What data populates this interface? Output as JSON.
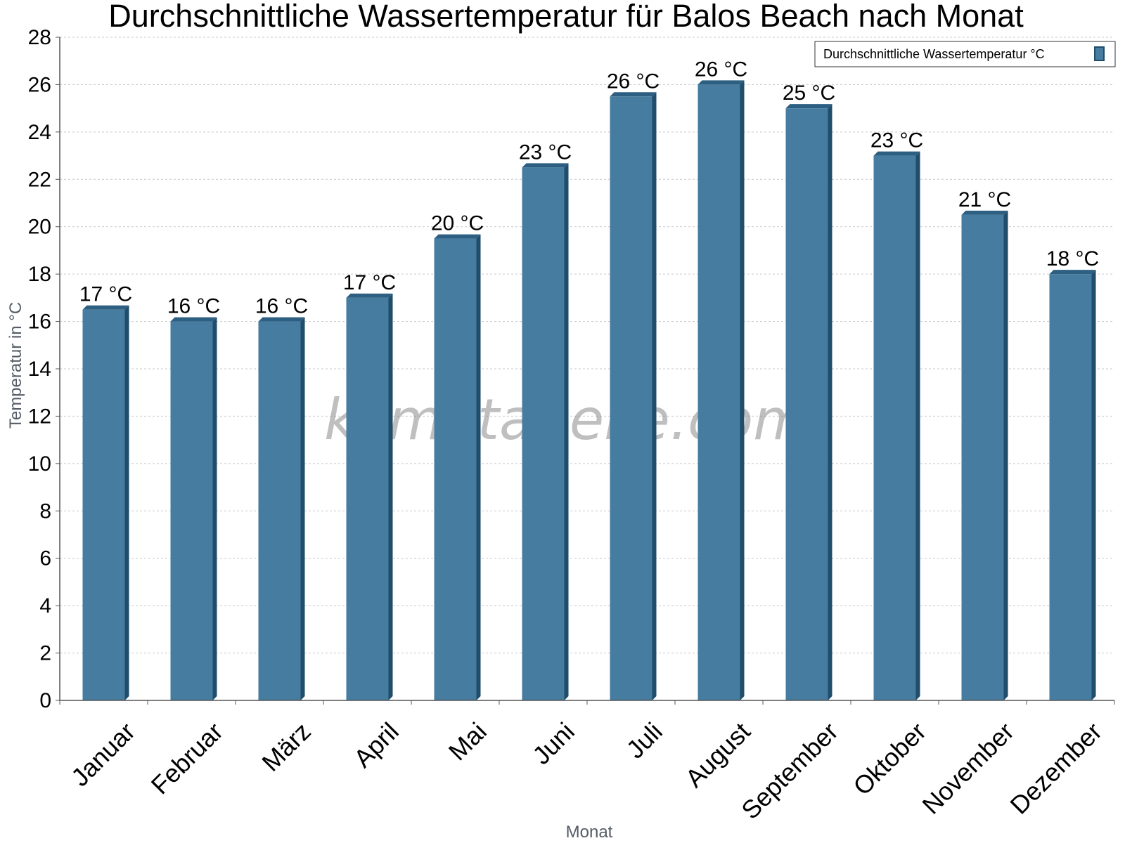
{
  "chart_data": {
    "type": "bar",
    "title": "Durchschnittliche Wassertemperatur für Balos Beach nach Monat",
    "xlabel": "Monat",
    "ylabel": "Temperatur in °C",
    "categories": [
      "Januar",
      "Februar",
      "März",
      "April",
      "Mai",
      "Juni",
      "Juli",
      "August",
      "September",
      "Oktober",
      "November",
      "Dezember"
    ],
    "series": [
      {
        "name": "Durchschnittliche Wassertemperatur °C",
        "values": [
          16.5,
          16,
          16,
          17,
          19.5,
          22.5,
          25.5,
          26,
          25,
          23,
          20.5,
          18
        ],
        "labels": [
          "17 °C",
          "16 °C",
          "16 °C",
          "17 °C",
          "20 °C",
          "23 °C",
          "26 °C",
          "26 °C",
          "25 °C",
          "23 °C",
          "21 °C",
          "18 °C"
        ]
      }
    ],
    "ylim": [
      0,
      28
    ],
    "yticks": [
      "0",
      "2",
      "4",
      "6",
      "8",
      "10",
      "12",
      "14",
      "16",
      "18",
      "20",
      "22",
      "24",
      "26",
      "28"
    ],
    "grid": true,
    "legend_position": "top-right",
    "colors": {
      "bar_face": "#467c9f",
      "bar_side": "#1f4d6b",
      "bar_top": "#2d5f82",
      "grid": "#c8c8c8",
      "axis": "#555555"
    },
    "watermark": "klimatabelle.com"
  }
}
